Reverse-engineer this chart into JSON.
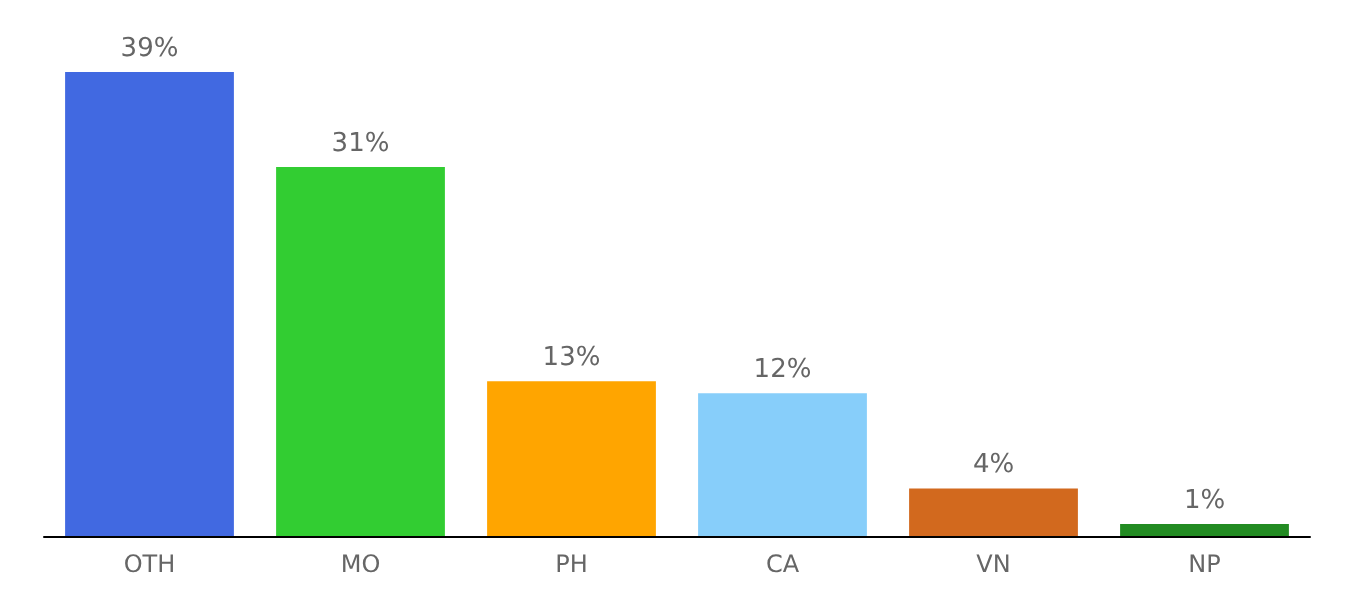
{
  "chart_data": {
    "type": "bar",
    "categories": [
      "OTH",
      "MO",
      "PH",
      "CA",
      "VN",
      "NP"
    ],
    "values": [
      39,
      31,
      13,
      12,
      4,
      1
    ],
    "colors": [
      "#4169e1",
      "#32cd32",
      "#ffa500",
      "#87cefa",
      "#d2691e",
      "#228b22"
    ],
    "value_labels": [
      "39%",
      "31%",
      "13%",
      "12%",
      "4%",
      "1%"
    ]
  }
}
